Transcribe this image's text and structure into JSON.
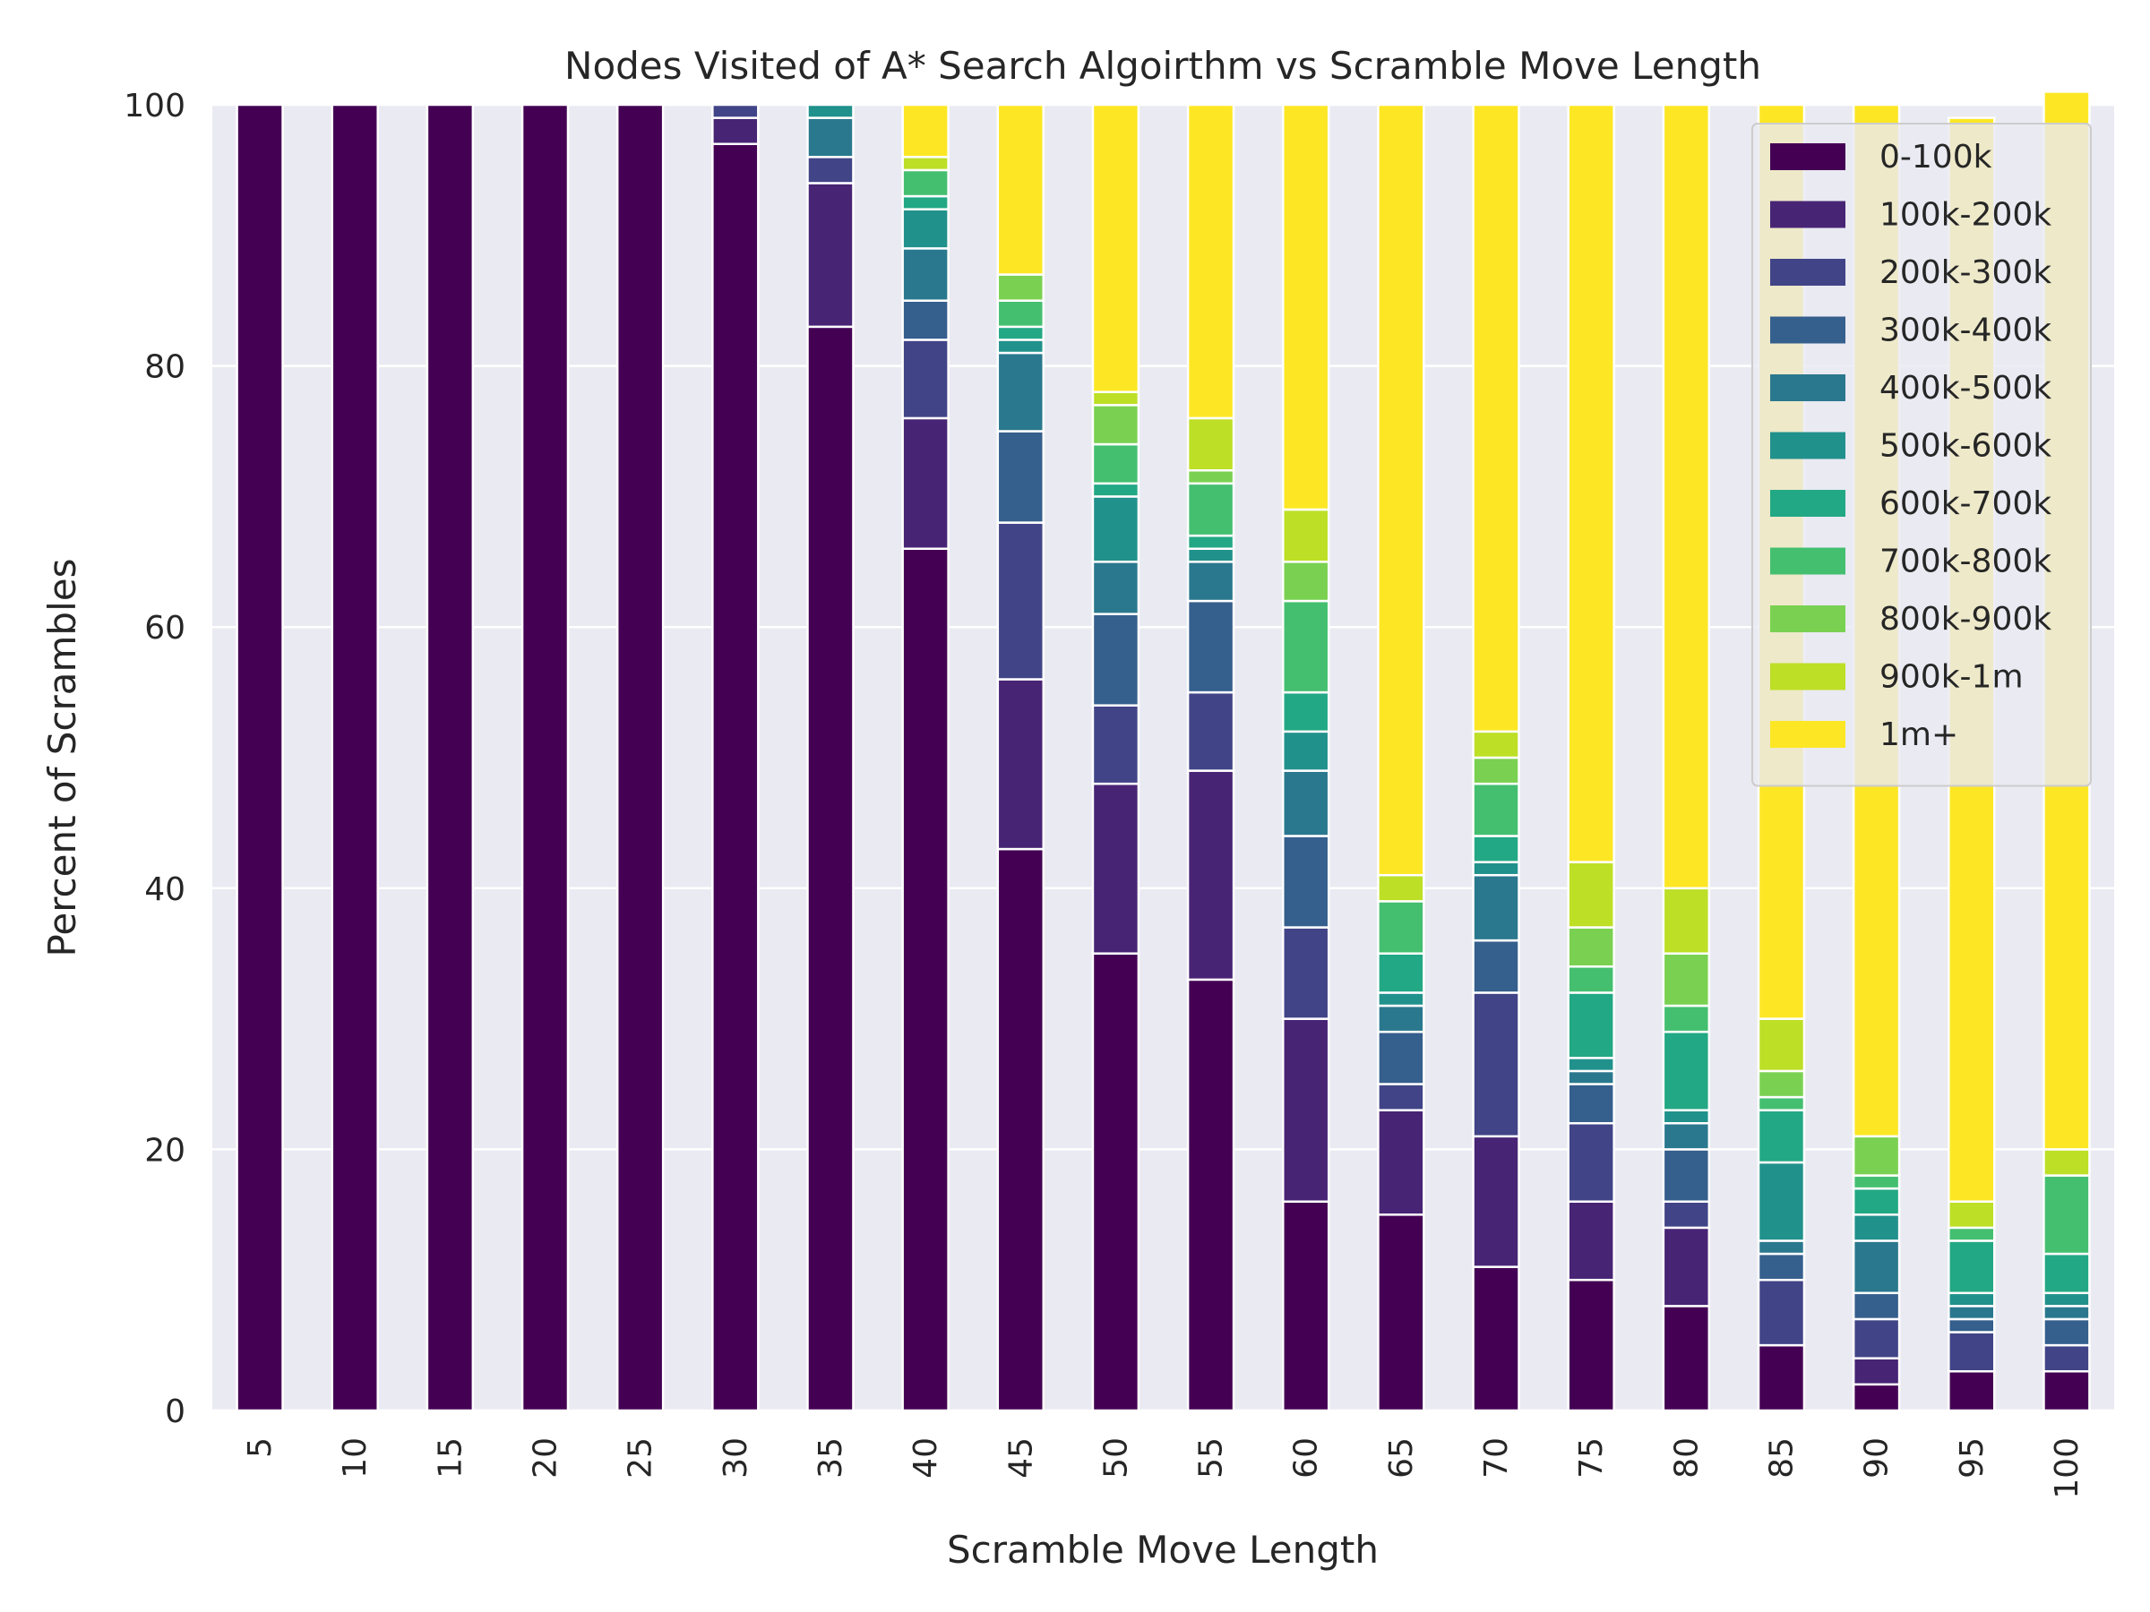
{
  "chart_data": {
    "type": "bar",
    "stacked": true,
    "title": "Nodes Visited of A* Search Algoirthm vs Scramble Move Length",
    "xlabel": "Scramble Move Length",
    "ylabel": "Percent of Scrambles",
    "ylim": [
      0,
      100
    ],
    "yticks": [
      "0",
      "20",
      "40",
      "60",
      "80",
      "100"
    ],
    "grid": true,
    "legend_position": "top-right",
    "categories": [
      "5",
      "10",
      "15",
      "20",
      "25",
      "30",
      "35",
      "40",
      "45",
      "50",
      "55",
      "60",
      "65",
      "70",
      "75",
      "80",
      "85",
      "90",
      "95",
      "100"
    ],
    "series": [
      {
        "name": "0-100k",
        "color": "#440154",
        "values": [
          100,
          100,
          100,
          100,
          100,
          97,
          83,
          66,
          43,
          35,
          33,
          16,
          15,
          11,
          10,
          8,
          5,
          2,
          3,
          3
        ]
      },
      {
        "name": "100k-200k",
        "color": "#482475",
        "values": [
          0,
          0,
          0,
          0,
          0,
          2,
          11,
          10,
          13,
          13,
          16,
          14,
          8,
          10,
          6,
          6,
          0,
          2,
          0,
          0
        ]
      },
      {
        "name": "200k-300k",
        "color": "#414487",
        "values": [
          0,
          0,
          0,
          0,
          0,
          1,
          2,
          6,
          12,
          6,
          6,
          7,
          2,
          11,
          6,
          2,
          5,
          3,
          3,
          2
        ]
      },
      {
        "name": "300k-400k",
        "color": "#355f8d",
        "values": [
          0,
          0,
          0,
          0,
          0,
          0,
          0,
          3,
          7,
          7,
          7,
          7,
          4,
          4,
          3,
          4,
          2,
          2,
          1,
          2
        ]
      },
      {
        "name": "400k-500k",
        "color": "#2a788e",
        "values": [
          0,
          0,
          0,
          0,
          0,
          0,
          3,
          4,
          6,
          4,
          3,
          5,
          2,
          5,
          1,
          2,
          1,
          4,
          1,
          1
        ]
      },
      {
        "name": "500k-600k",
        "color": "#21918c",
        "values": [
          0,
          0,
          0,
          0,
          0,
          0,
          1,
          3,
          1,
          5,
          1,
          3,
          1,
          1,
          1,
          1,
          6,
          2,
          1,
          1
        ]
      },
      {
        "name": "600k-700k",
        "color": "#22a884",
        "values": [
          0,
          0,
          0,
          0,
          0,
          0,
          0,
          1,
          1,
          1,
          1,
          3,
          3,
          2,
          5,
          6,
          4,
          2,
          4,
          3
        ]
      },
      {
        "name": "700k-800k",
        "color": "#44bf70",
        "values": [
          0,
          0,
          0,
          0,
          0,
          0,
          0,
          2,
          2,
          3,
          4,
          7,
          4,
          4,
          2,
          2,
          1,
          1,
          1,
          6
        ]
      },
      {
        "name": "800k-900k",
        "color": "#7ad151",
        "values": [
          0,
          0,
          0,
          0,
          0,
          0,
          0,
          0,
          2,
          3,
          1,
          3,
          0,
          2,
          3,
          4,
          2,
          3,
          0,
          0
        ]
      },
      {
        "name": "900k-1m",
        "color": "#bddf26",
        "values": [
          0,
          0,
          0,
          0,
          0,
          0,
          0,
          1,
          0,
          1,
          4,
          4,
          2,
          2,
          5,
          5,
          4,
          0,
          2,
          2
        ]
      },
      {
        "name": "1m+",
        "color": "#fde725",
        "values": [
          0,
          0,
          0,
          0,
          0,
          0,
          0,
          4,
          13,
          22,
          24,
          31,
          59,
          48,
          58,
          60,
          70,
          79,
          83,
          81
        ]
      }
    ]
  }
}
